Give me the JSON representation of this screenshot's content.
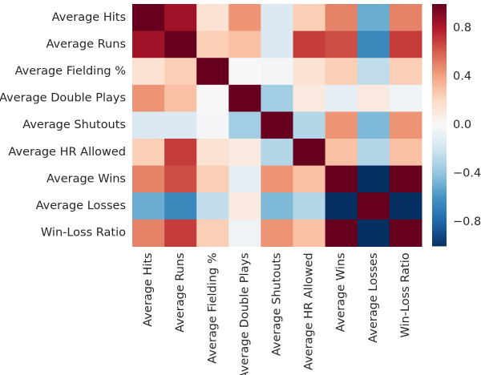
{
  "chart_data": {
    "type": "heatmap",
    "title": "",
    "xlabel": "",
    "ylabel": "",
    "labels": [
      "Average Hits",
      "Average Runs",
      "Average Fielding %",
      "Average Double Plays",
      "Average Shutouts",
      "Average HR Allowed",
      "Average Wins",
      "Average Losses",
      "Win-Loss Ratio"
    ],
    "matrix": [
      [
        1.0,
        0.85,
        0.15,
        0.45,
        -0.15,
        0.25,
        0.5,
        -0.5,
        0.5
      ],
      [
        0.85,
        1.0,
        0.25,
        0.3,
        -0.15,
        0.7,
        0.65,
        -0.65,
        0.7
      ],
      [
        0.15,
        0.25,
        1.0,
        0.0,
        -0.02,
        0.15,
        0.25,
        -0.25,
        0.25
      ],
      [
        0.45,
        0.3,
        0.0,
        1.0,
        -0.35,
        0.1,
        -0.1,
        0.1,
        -0.05
      ],
      [
        -0.15,
        -0.15,
        -0.02,
        -0.35,
        1.0,
        -0.3,
        0.45,
        -0.45,
        0.45
      ],
      [
        0.25,
        0.7,
        0.15,
        0.1,
        -0.3,
        1.0,
        0.3,
        -0.3,
        0.3
      ],
      [
        0.5,
        0.65,
        0.25,
        -0.1,
        0.45,
        0.3,
        1.0,
        -1.0,
        1.0
      ],
      [
        -0.5,
        -0.65,
        -0.25,
        0.1,
        -0.45,
        -0.3,
        -1.0,
        1.0,
        -1.0
      ],
      [
        0.5,
        0.7,
        0.25,
        -0.05,
        0.45,
        0.3,
        1.0,
        -1.0,
        1.0
      ]
    ],
    "colorbar": {
      "range": [
        -1.0,
        1.0
      ],
      "ticks": [
        0.8,
        0.4,
        0.0,
        -0.4,
        -0.8
      ],
      "tick_labels": [
        "0.8",
        "0.4",
        "0.0",
        "−0.4",
        "−0.8"
      ],
      "colormap": "RdBu_r",
      "colors": {
        "low": "#053061",
        "mid": "#f7f7f7",
        "high": "#67001f"
      }
    },
    "grid": false
  }
}
